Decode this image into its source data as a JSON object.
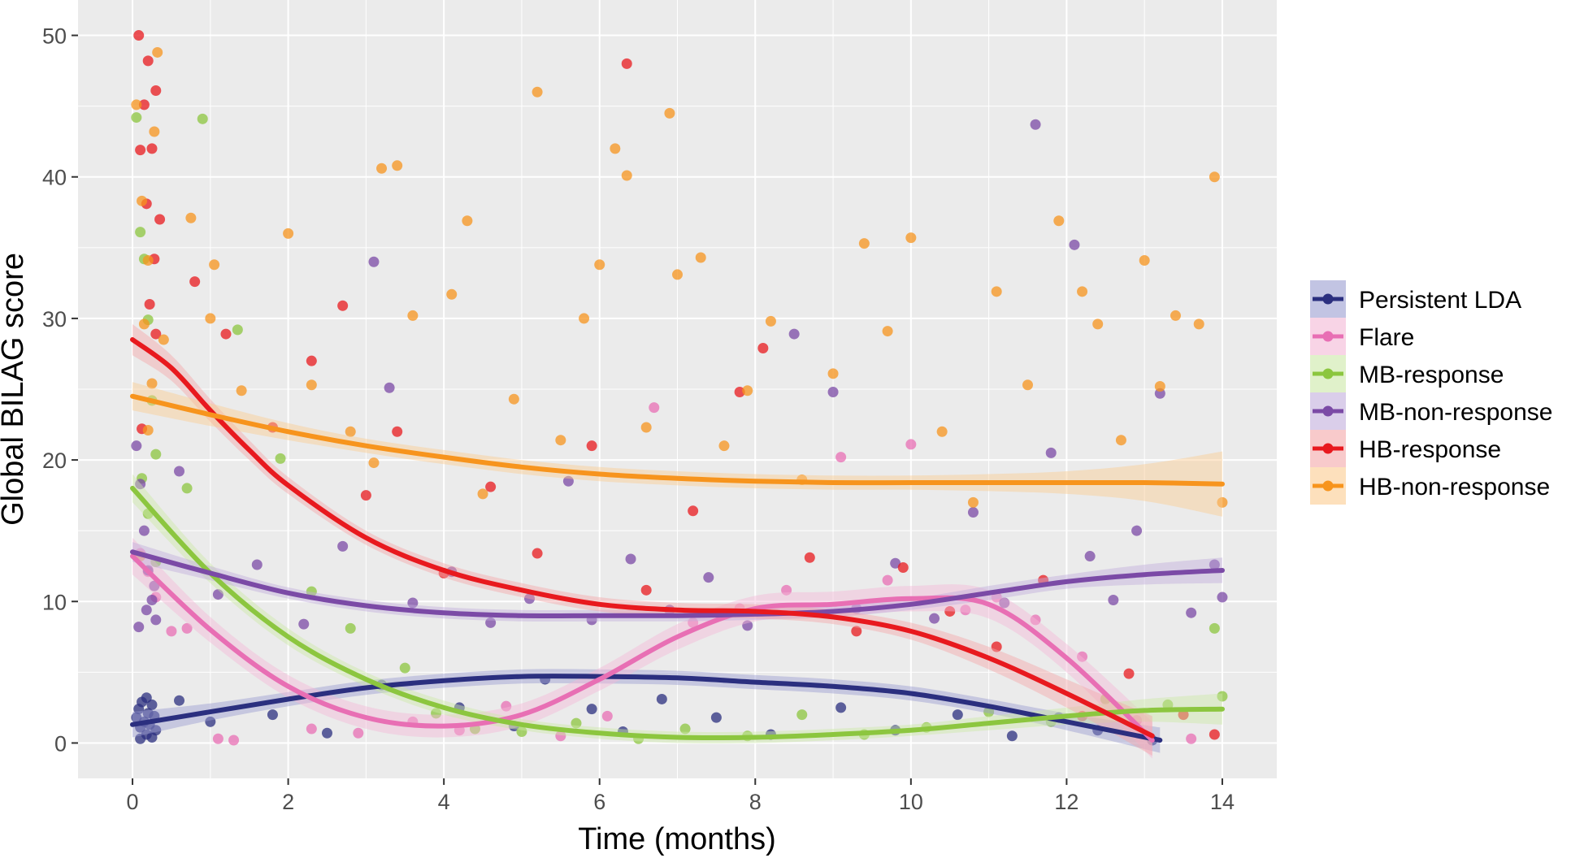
{
  "chart_data": {
    "type": "scatter",
    "title": "",
    "xlabel": "Time (months)",
    "ylabel": "Global BILAG score",
    "xlim": [
      -0.7,
      14.7
    ],
    "ylim": [
      -2.5,
      52.5
    ],
    "x_ticks": [
      0,
      2,
      4,
      6,
      8,
      10,
      12,
      14
    ],
    "y_ticks": [
      0,
      10,
      20,
      30,
      40,
      50
    ],
    "grid": true,
    "legend_position": "right",
    "series": [
      {
        "name": "Persistent LDA",
        "color": "#2b2f7f",
        "band_color": "#9a9cd0",
        "smooth": {
          "x": [
            0,
            1,
            2,
            3,
            4,
            5,
            6,
            7,
            8,
            9,
            10,
            11,
            12,
            13.2
          ],
          "y": [
            1.3,
            2.2,
            3.1,
            3.9,
            4.4,
            4.7,
            4.7,
            4.6,
            4.3,
            4.0,
            3.5,
            2.6,
            1.5,
            0.2
          ]
        },
        "band_halfwidth": [
          0.9,
          0.6,
          0.5,
          0.5,
          0.5,
          0.5,
          0.5,
          0.5,
          0.5,
          0.5,
          0.5,
          0.5,
          0.6,
          0.9
        ],
        "points": [
          [
            0.05,
            1.8
          ],
          [
            0.08,
            2.4
          ],
          [
            0.1,
            1.1
          ],
          [
            0.12,
            2.9
          ],
          [
            0.15,
            1.5
          ],
          [
            0.18,
            0.6
          ],
          [
            0.2,
            2.1
          ],
          [
            0.22,
            1.3
          ],
          [
            0.25,
            2.7
          ],
          [
            0.28,
            1.9
          ],
          [
            0.3,
            0.9
          ],
          [
            0.1,
            0.3
          ],
          [
            0.18,
            3.2
          ],
          [
            0.25,
            0.4
          ],
          [
            0.6,
            3.0
          ],
          [
            1.0,
            1.5
          ],
          [
            1.8,
            2.0
          ],
          [
            2.5,
            0.7
          ],
          [
            3.2,
            4.1
          ],
          [
            4.2,
            2.5
          ],
          [
            4.9,
            1.2
          ],
          [
            5.3,
            4.5
          ],
          [
            5.9,
            2.4
          ],
          [
            6.3,
            0.8
          ],
          [
            6.8,
            3.1
          ],
          [
            7.5,
            1.8
          ],
          [
            8.2,
            0.6
          ],
          [
            9.1,
            2.5
          ],
          [
            9.8,
            0.9
          ],
          [
            10.6,
            2.0
          ],
          [
            11.3,
            0.5
          ],
          [
            11.9,
            1.8
          ],
          [
            12.4,
            0.9
          ],
          [
            13.1,
            0.2
          ]
        ]
      },
      {
        "name": "Flare",
        "color": "#e86fb4",
        "band_color": "#f4b8d6",
        "smooth": {
          "x": [
            0,
            1,
            2,
            3,
            4,
            5,
            6,
            7,
            8,
            9,
            10,
            11,
            12,
            13.1
          ],
          "y": [
            13.2,
            8.0,
            4.0,
            1.8,
            1.2,
            2.0,
            4.5,
            7.5,
            9.5,
            9.8,
            10.2,
            9.8,
            6.0,
            0.2
          ]
        },
        "band_halfwidth": [
          1.3,
          0.9,
          0.8,
          0.8,
          0.8,
          0.8,
          0.8,
          0.9,
          0.9,
          0.9,
          0.9,
          1.0,
          1.0,
          1.3
        ],
        "points": [
          [
            0.1,
            13.4
          ],
          [
            0.2,
            12.1
          ],
          [
            0.3,
            10.3
          ],
          [
            0.5,
            7.9
          ],
          [
            0.7,
            8.1
          ],
          [
            1.1,
            0.3
          ],
          [
            1.3,
            0.2
          ],
          [
            2.3,
            1.0
          ],
          [
            2.9,
            0.7
          ],
          [
            3.6,
            1.5
          ],
          [
            4.2,
            0.9
          ],
          [
            4.8,
            2.6
          ],
          [
            5.5,
            0.5
          ],
          [
            6.1,
            1.9
          ],
          [
            6.7,
            23.7
          ],
          [
            7.2,
            8.5
          ],
          [
            7.8,
            9.5
          ],
          [
            8.4,
            10.8
          ],
          [
            9.1,
            20.2
          ],
          [
            9.7,
            11.5
          ],
          [
            10.0,
            21.1
          ],
          [
            10.7,
            9.4
          ],
          [
            11.1,
            10.3
          ],
          [
            11.6,
            8.7
          ],
          [
            12.2,
            6.1
          ],
          [
            12.9,
            1.6
          ],
          [
            13.6,
            0.3
          ]
        ]
      },
      {
        "name": "MB-response",
        "color": "#8cc63f",
        "band_color": "#cbe8a6",
        "smooth": {
          "x": [
            0,
            1,
            2,
            3,
            4,
            5,
            6,
            7,
            8,
            9,
            10,
            11,
            12,
            13,
            14
          ],
          "y": [
            18.0,
            12.0,
            7.5,
            4.5,
            2.5,
            1.3,
            0.7,
            0.4,
            0.4,
            0.6,
            0.9,
            1.4,
            1.9,
            2.3,
            2.4
          ]
        },
        "band_halfwidth": [
          1.0,
          0.7,
          0.6,
          0.5,
          0.5,
          0.4,
          0.4,
          0.4,
          0.4,
          0.4,
          0.4,
          0.5,
          0.6,
          0.8,
          1.1
        ],
        "points": [
          [
            0.05,
            44.2
          ],
          [
            0.1,
            36.1
          ],
          [
            0.15,
            34.2
          ],
          [
            0.2,
            29.9
          ],
          [
            0.25,
            24.2
          ],
          [
            0.3,
            20.4
          ],
          [
            0.12,
            18.7
          ],
          [
            0.2,
            16.2
          ],
          [
            0.3,
            12.8
          ],
          [
            0.9,
            44.1
          ],
          [
            0.7,
            18.0
          ],
          [
            1.35,
            29.2
          ],
          [
            1.9,
            20.1
          ],
          [
            2.3,
            10.7
          ],
          [
            2.8,
            8.1
          ],
          [
            3.5,
            5.3
          ],
          [
            3.9,
            2.1
          ],
          [
            4.4,
            1.0
          ],
          [
            5.0,
            0.8
          ],
          [
            5.7,
            1.4
          ],
          [
            6.5,
            0.3
          ],
          [
            7.1,
            1.0
          ],
          [
            7.9,
            0.5
          ],
          [
            8.6,
            2.0
          ],
          [
            9.4,
            0.6
          ],
          [
            10.2,
            1.1
          ],
          [
            11.0,
            2.2
          ],
          [
            11.8,
            1.5
          ],
          [
            12.5,
            3.1
          ],
          [
            13.3,
            2.7
          ],
          [
            13.9,
            8.1
          ],
          [
            14.0,
            3.3
          ]
        ]
      },
      {
        "name": "MB-non-response",
        "color": "#7b4aa6",
        "band_color": "#c2aedc",
        "smooth": {
          "x": [
            0,
            1,
            2,
            3,
            4,
            5,
            6,
            7,
            8,
            9,
            10,
            11,
            12,
            13,
            14
          ],
          "y": [
            13.5,
            12.0,
            10.6,
            9.7,
            9.2,
            9.0,
            9.0,
            9.0,
            9.1,
            9.3,
            9.8,
            10.6,
            11.4,
            11.9,
            12.2
          ]
        },
        "band_halfwidth": [
          0.7,
          0.5,
          0.4,
          0.4,
          0.4,
          0.4,
          0.4,
          0.4,
          0.4,
          0.4,
          0.4,
          0.5,
          0.5,
          0.7,
          0.9
        ],
        "points": [
          [
            0.05,
            21.0
          ],
          [
            0.1,
            18.3
          ],
          [
            0.15,
            15.0
          ],
          [
            0.2,
            12.2
          ],
          [
            0.25,
            10.1
          ],
          [
            0.3,
            8.7
          ],
          [
            0.08,
            8.2
          ],
          [
            0.18,
            9.4
          ],
          [
            0.28,
            11.1
          ],
          [
            0.6,
            19.2
          ],
          [
            1.1,
            10.5
          ],
          [
            1.6,
            12.6
          ],
          [
            2.2,
            8.4
          ],
          [
            2.7,
            13.9
          ],
          [
            3.1,
            34.0
          ],
          [
            3.3,
            25.1
          ],
          [
            3.6,
            9.9
          ],
          [
            4.1,
            12.1
          ],
          [
            4.6,
            8.5
          ],
          [
            5.1,
            10.2
          ],
          [
            5.6,
            18.5
          ],
          [
            5.9,
            8.7
          ],
          [
            6.4,
            13.0
          ],
          [
            6.9,
            9.4
          ],
          [
            7.4,
            11.7
          ],
          [
            7.9,
            8.3
          ],
          [
            8.5,
            28.9
          ],
          [
            9.0,
            24.8
          ],
          [
            9.3,
            9.5
          ],
          [
            9.8,
            12.7
          ],
          [
            10.3,
            8.8
          ],
          [
            10.8,
            16.3
          ],
          [
            11.2,
            9.9
          ],
          [
            11.6,
            43.7
          ],
          [
            11.8,
            20.5
          ],
          [
            12.1,
            35.2
          ],
          [
            12.3,
            13.2
          ],
          [
            12.6,
            10.1
          ],
          [
            12.9,
            15.0
          ],
          [
            13.2,
            24.7
          ],
          [
            13.6,
            9.2
          ],
          [
            13.9,
            12.6
          ],
          [
            14.0,
            10.3
          ]
        ]
      },
      {
        "name": "HB-response",
        "color": "#e8191e",
        "band_color": "#f4a6a8",
        "smooth": {
          "x": [
            0,
            0.5,
            1,
            1.5,
            2,
            3,
            4,
            5,
            6,
            7,
            8,
            9,
            10,
            11,
            12,
            13.1
          ],
          "y": [
            28.5,
            26.5,
            23.5,
            20.7,
            18.2,
            14.5,
            12.2,
            10.8,
            9.8,
            9.4,
            9.3,
            8.9,
            7.9,
            6.0,
            3.5,
            0.5
          ]
        },
        "band_halfwidth": [
          1.1,
          0.9,
          0.8,
          0.7,
          0.6,
          0.5,
          0.5,
          0.5,
          0.5,
          0.5,
          0.5,
          0.5,
          0.6,
          0.8,
          1.0,
          1.4
        ],
        "points": [
          [
            0.08,
            50.0
          ],
          [
            0.15,
            45.1
          ],
          [
            0.2,
            48.2
          ],
          [
            0.25,
            42.0
          ],
          [
            0.3,
            46.1
          ],
          [
            0.18,
            38.1
          ],
          [
            0.28,
            34.2
          ],
          [
            0.1,
            41.9
          ],
          [
            0.22,
            31.0
          ],
          [
            0.3,
            28.9
          ],
          [
            0.12,
            22.2
          ],
          [
            0.35,
            37.0
          ],
          [
            0.8,
            32.6
          ],
          [
            1.2,
            28.9
          ],
          [
            1.8,
            22.3
          ],
          [
            2.3,
            27.0
          ],
          [
            2.7,
            30.9
          ],
          [
            3.0,
            17.5
          ],
          [
            3.4,
            22.0
          ],
          [
            4.0,
            12.0
          ],
          [
            4.6,
            18.1
          ],
          [
            5.2,
            13.4
          ],
          [
            5.9,
            21.0
          ],
          [
            6.35,
            48.0
          ],
          [
            6.6,
            10.8
          ],
          [
            7.2,
            16.4
          ],
          [
            7.8,
            24.8
          ],
          [
            8.1,
            27.9
          ],
          [
            8.7,
            13.1
          ],
          [
            9.3,
            7.9
          ],
          [
            9.9,
            12.4
          ],
          [
            10.5,
            9.3
          ],
          [
            11.1,
            6.8
          ],
          [
            11.7,
            11.5
          ],
          [
            12.2,
            1.9
          ],
          [
            12.8,
            4.9
          ],
          [
            13.5,
            2.0
          ],
          [
            13.9,
            0.6
          ]
        ]
      },
      {
        "name": "HB-non-response",
        "color": "#f7941d",
        "band_color": "#fbcb90",
        "smooth": {
          "x": [
            0,
            1,
            2,
            3,
            4,
            5,
            6,
            7,
            8,
            9,
            10,
            11,
            12,
            13,
            14
          ],
          "y": [
            24.5,
            23.2,
            22.0,
            21.0,
            20.2,
            19.5,
            19.0,
            18.7,
            18.5,
            18.4,
            18.4,
            18.4,
            18.4,
            18.4,
            18.3
          ]
        },
        "band_halfwidth": [
          1.0,
          0.8,
          0.6,
          0.5,
          0.5,
          0.5,
          0.5,
          0.5,
          0.5,
          0.5,
          0.5,
          0.6,
          0.8,
          1.3,
          2.3
        ],
        "points": [
          [
            0.05,
            45.1
          ],
          [
            0.12,
            38.3
          ],
          [
            0.2,
            34.1
          ],
          [
            0.28,
            43.2
          ],
          [
            0.32,
            48.8
          ],
          [
            0.15,
            29.6
          ],
          [
            0.25,
            25.4
          ],
          [
            0.1,
            13.2
          ],
          [
            0.2,
            22.1
          ],
          [
            0.4,
            28.5
          ],
          [
            0.75,
            37.1
          ],
          [
            1.0,
            30.0
          ],
          [
            1.05,
            33.8
          ],
          [
            1.4,
            24.9
          ],
          [
            2.0,
            36.0
          ],
          [
            2.3,
            25.3
          ],
          [
            2.8,
            22.0
          ],
          [
            3.1,
            19.8
          ],
          [
            3.2,
            40.6
          ],
          [
            3.4,
            40.8
          ],
          [
            3.6,
            30.2
          ],
          [
            4.1,
            31.7
          ],
          [
            4.3,
            36.9
          ],
          [
            4.5,
            17.6
          ],
          [
            4.9,
            24.3
          ],
          [
            5.2,
            46.0
          ],
          [
            5.5,
            21.4
          ],
          [
            5.8,
            30.0
          ],
          [
            6.0,
            33.8
          ],
          [
            6.2,
            42.0
          ],
          [
            6.35,
            40.1
          ],
          [
            6.6,
            22.3
          ],
          [
            6.9,
            44.5
          ],
          [
            7.0,
            33.1
          ],
          [
            7.3,
            34.3
          ],
          [
            7.6,
            21.0
          ],
          [
            7.9,
            24.9
          ],
          [
            8.2,
            29.8
          ],
          [
            8.6,
            18.6
          ],
          [
            9.0,
            26.1
          ],
          [
            9.4,
            35.3
          ],
          [
            9.7,
            29.1
          ],
          [
            10.0,
            35.7
          ],
          [
            10.4,
            22.0
          ],
          [
            10.8,
            17.0
          ],
          [
            11.1,
            31.9
          ],
          [
            11.5,
            25.3
          ],
          [
            11.9,
            36.9
          ],
          [
            12.2,
            31.9
          ],
          [
            12.4,
            29.6
          ],
          [
            12.7,
            21.4
          ],
          [
            13.0,
            34.1
          ],
          [
            13.2,
            25.2
          ],
          [
            13.4,
            30.2
          ],
          [
            13.7,
            29.6
          ],
          [
            13.9,
            40.0
          ],
          [
            14.0,
            17.0
          ]
        ]
      }
    ]
  }
}
